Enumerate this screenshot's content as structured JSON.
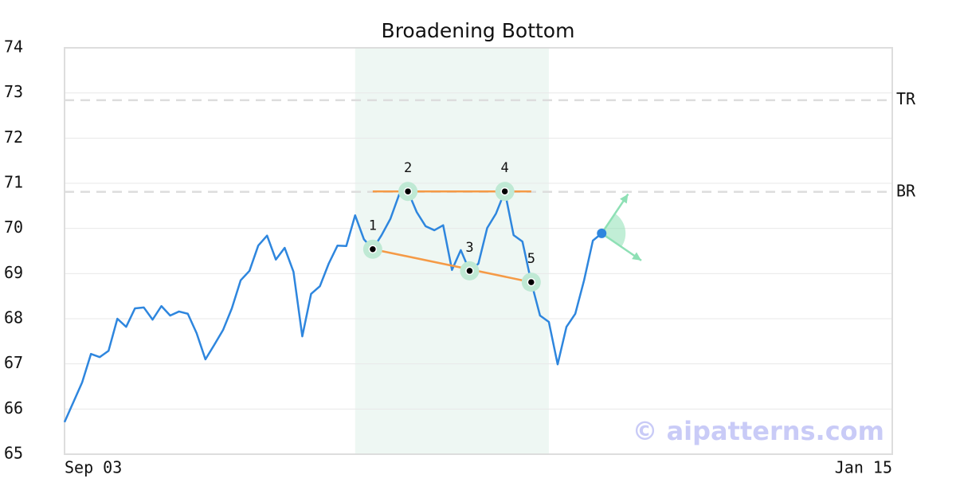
{
  "chart_data": {
    "type": "line",
    "title": "Broadening Bottom",
    "categories": [
      "Sep 03",
      null,
      null,
      null,
      null,
      null,
      null,
      null,
      null,
      null,
      null,
      null,
      null,
      null,
      null,
      null,
      null,
      null,
      null,
      null,
      null,
      null,
      null,
      null,
      null,
      null,
      null,
      null,
      null,
      null,
      null,
      null,
      null,
      null,
      null,
      null,
      null,
      null,
      null,
      null,
      null,
      null,
      null,
      null,
      null,
      null,
      null,
      null,
      null,
      null,
      null,
      null,
      null,
      null,
      null,
      null,
      null,
      null,
      null,
      null,
      null,
      null,
      null,
      null,
      null,
      null,
      null,
      null,
      null,
      null,
      null,
      null,
      null,
      null,
      null,
      null,
      null,
      null,
      null,
      null,
      null,
      null,
      null,
      null,
      null,
      null,
      null,
      null,
      null,
      null,
      null,
      null,
      null,
      null,
      "Jan 15"
    ],
    "series": [
      {
        "color": "#2e86de",
        "values": [
          65.71,
          66.15,
          66.59,
          67.22,
          67.15,
          67.29,
          68.0,
          67.82,
          68.23,
          68.25,
          67.98,
          68.28,
          68.07,
          68.16,
          68.11,
          67.68,
          67.1,
          67.42,
          67.75,
          68.23,
          68.85,
          69.06,
          69.62,
          69.84,
          69.31,
          69.57,
          69.04,
          67.61,
          68.55,
          68.72,
          69.22,
          69.62,
          69.61,
          70.29,
          69.76,
          69.54,
          69.85,
          70.21,
          70.75,
          70.82,
          70.36,
          70.05,
          69.96,
          70.07,
          69.08,
          69.52,
          69.06,
          69.22,
          70.01,
          70.33,
          70.82,
          69.85,
          69.71,
          68.81,
          68.07,
          67.93,
          66.99,
          67.82,
          68.11,
          68.85,
          69.73,
          69.89,
          null,
          null,
          null,
          null,
          null,
          null,
          null,
          null,
          null,
          null,
          null,
          null,
          null,
          null,
          null,
          null,
          null,
          null,
          null,
          null,
          null,
          null,
          null,
          null,
          null,
          null,
          null,
          null,
          null,
          null,
          null,
          null,
          null
        ]
      }
    ],
    "ylim": [
      65,
      74
    ],
    "yticks": [
      65,
      66,
      67,
      68,
      69,
      70,
      71,
      72,
      73,
      74
    ],
    "grid": true,
    "highlight": {
      "x": [
        33,
        55
      ],
      "color": "#eef7f3"
    },
    "levels": [
      {
        "label": "TR",
        "value": 72.84
      },
      {
        "label": "BR",
        "value": 70.81
      }
    ],
    "trendlines": [
      {
        "x": [
          35,
          53
        ],
        "values": [
          70.82,
          70.82
        ],
        "color": "#f59a46"
      },
      {
        "x": [
          35,
          53
        ],
        "values": [
          69.54,
          68.81
        ],
        "color": "#f59a46"
      }
    ],
    "pattern_points": [
      {
        "label": "1",
        "x": 35,
        "value": 69.54
      },
      {
        "label": "2",
        "x": 39,
        "value": 70.82
      },
      {
        "label": "3",
        "x": 46,
        "value": 69.06
      },
      {
        "label": "4",
        "x": 50,
        "value": 70.82
      },
      {
        "label": "5",
        "x": 53,
        "value": 68.81
      }
    ],
    "projection": {
      "x": [
        64,
        65.5
      ],
      "values": [
        70.76,
        69.29
      ],
      "color": "#8ee0b5"
    },
    "watermark": "© aipatterns.com"
  }
}
